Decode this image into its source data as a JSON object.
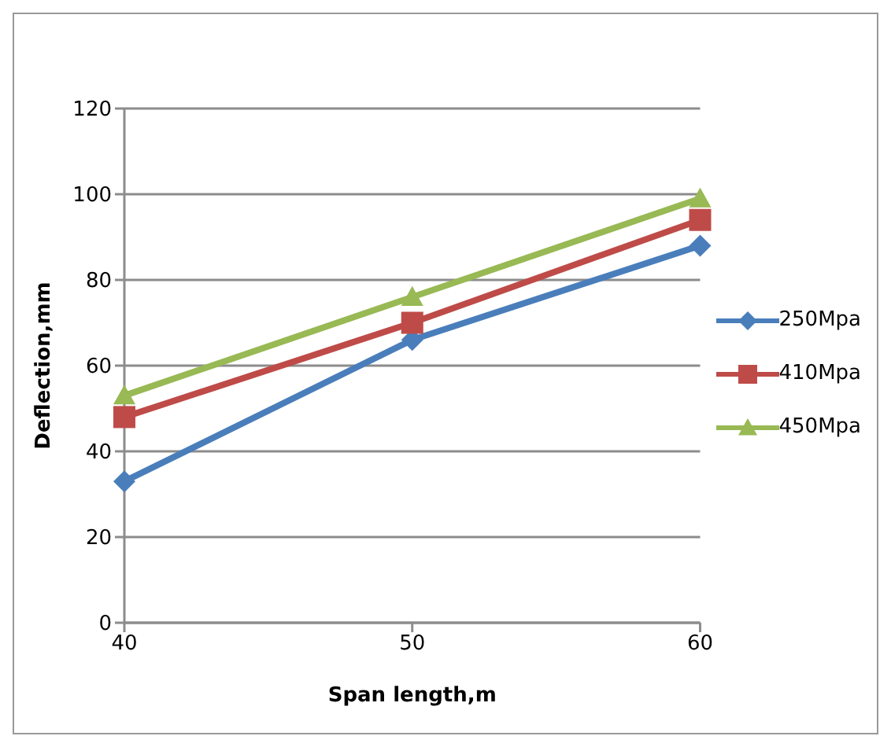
{
  "chart_data": {
    "type": "line",
    "xlabel": "Span length,m",
    "ylabel": "Deflection,mm",
    "categories": [
      "40",
      "50",
      "60"
    ],
    "series": [
      {
        "name": "250Mpa",
        "color": "#4a7ebb",
        "marker": "diamond",
        "values": [
          33,
          66,
          88
        ]
      },
      {
        "name": "410Mpa",
        "color": "#be4b48",
        "marker": "square",
        "values": [
          48,
          70,
          94
        ]
      },
      {
        "name": "450Mpa",
        "color": "#98b954",
        "marker": "triangle",
        "values": [
          53,
          76,
          99
        ]
      }
    ],
    "ylim": [
      0,
      120
    ],
    "yticks": [
      0,
      20,
      40,
      60,
      80,
      100,
      120
    ],
    "grid": "y",
    "legend": "right"
  }
}
